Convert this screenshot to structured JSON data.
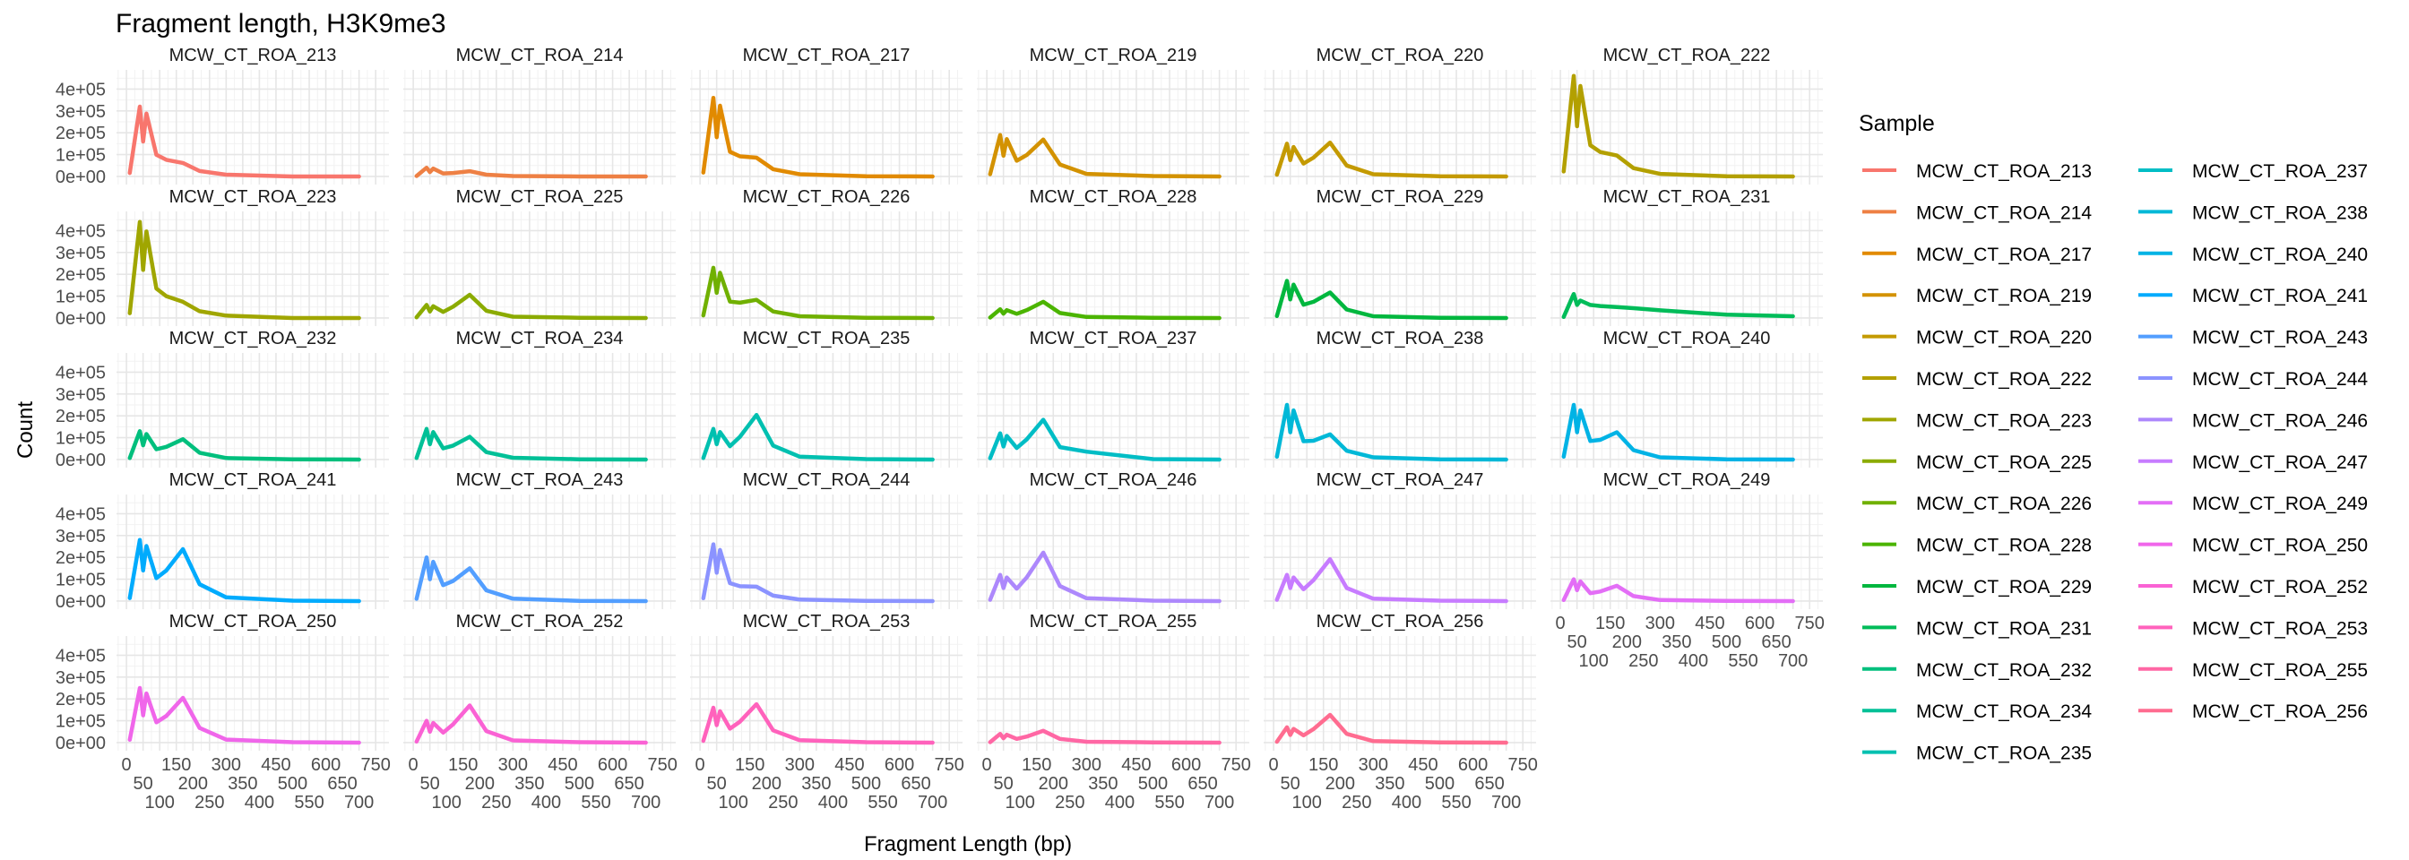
{
  "chart_data": {
    "type": "line",
    "title": "Fragment length, H3K9me3",
    "xlabel": "Fragment Length (bp)",
    "ylabel": "Count",
    "facet": "Sample",
    "xticks": [
      0,
      50,
      100,
      150,
      200,
      250,
      300,
      350,
      400,
      450,
      500,
      550,
      600,
      650,
      700,
      750
    ],
    "yticks": [
      0,
      100000,
      200000,
      300000,
      400000
    ],
    "ytick_labels": [
      "0e+00",
      "1e+05",
      "2e+05",
      "3e+05",
      "4e+05"
    ],
    "xlim": [
      -30,
      790
    ],
    "ylim": [
      -37000,
      488000
    ],
    "grid": true,
    "legend": {
      "title": "Sample",
      "position": "right"
    },
    "x": [
      10,
      40,
      50,
      60,
      90,
      120,
      170,
      220,
      300,
      500,
      700
    ],
    "y_unit": "thousands",
    "series": [
      {
        "name": "MCW_CT_ROA_213",
        "color": "#F8766D",
        "y": [
          16,
          320,
          160,
          288,
          99,
          76,
          62,
          25,
          8,
          0,
          0
        ]
      },
      {
        "name": "MCW_CT_ROA_214",
        "color": "#EE8044",
        "y": [
          2,
          40,
          20,
          36,
          14,
          16,
          24,
          8,
          2,
          0,
          0
        ]
      },
      {
        "name": "MCW_CT_ROA_217",
        "color": "#E18A00",
        "y": [
          18,
          360,
          180,
          324,
          113,
          92,
          86,
          33,
          10,
          1,
          0
        ]
      },
      {
        "name": "MCW_CT_ROA_219",
        "color": "#D39200",
        "y": [
          10,
          190,
          95,
          171,
          72,
          98,
          169,
          55,
          12,
          2,
          0
        ]
      },
      {
        "name": "MCW_CT_ROA_220",
        "color": "#C49A00",
        "y": [
          8,
          150,
          75,
          135,
          59,
          86,
          155,
          50,
          10,
          1,
          0
        ]
      },
      {
        "name": "MCW_CT_ROA_222",
        "color": "#B3A000",
        "y": [
          23,
          460,
          230,
          414,
          143,
          112,
          96,
          38,
          12,
          1,
          0
        ]
      },
      {
        "name": "MCW_CT_ROA_223",
        "color": "#A0A600",
        "y": [
          22,
          440,
          220,
          396,
          135,
          100,
          74,
          31,
          11,
          0,
          0
        ]
      },
      {
        "name": "MCW_CT_ROA_225",
        "color": "#8BAB00",
        "y": [
          3,
          60,
          30,
          54,
          28,
          52,
          106,
          33,
          6,
          1,
          0
        ]
      },
      {
        "name": "MCW_CT_ROA_226",
        "color": "#70B000",
        "y": [
          12,
          230,
          115,
          207,
          75,
          70,
          83,
          30,
          8,
          1,
          0
        ]
      },
      {
        "name": "MCW_CT_ROA_228",
        "color": "#4BB400",
        "y": [
          2,
          40,
          20,
          36,
          19,
          36,
          74,
          23,
          5,
          1,
          0
        ]
      },
      {
        "name": "MCW_CT_ROA_229",
        "color": "#00B73E",
        "y": [
          9,
          170,
          85,
          153,
          61,
          74,
          117,
          39,
          8,
          1,
          0
        ]
      },
      {
        "name": "MCW_CT_ROA_231",
        "color": "#00BC59",
        "y": [
          5,
          110,
          60,
          80,
          60,
          55,
          50,
          45,
          35,
          15,
          8
        ]
      },
      {
        "name": "MCW_CT_ROA_232",
        "color": "#00BF7D",
        "y": [
          7,
          130,
          65,
          117,
          47,
          58,
          93,
          31,
          7,
          1,
          0
        ]
      },
      {
        "name": "MCW_CT_ROA_234",
        "color": "#00C097",
        "y": [
          7,
          140,
          70,
          126,
          51,
          64,
          104,
          34,
          8,
          1,
          0
        ]
      },
      {
        "name": "MCW_CT_ROA_235",
        "color": "#00C0B0",
        "y": [
          7,
          140,
          70,
          126,
          61,
          104,
          204,
          64,
          13,
          2,
          0
        ]
      },
      {
        "name": "MCW_CT_ROA_237",
        "color": "#00BDC5",
        "y": [
          6,
          120,
          60,
          108,
          53,
          92,
          182,
          57,
          36,
          2,
          0
        ]
      },
      {
        "name": "MCW_CT_ROA_238",
        "color": "#00B8D7",
        "y": [
          13,
          250,
          125,
          225,
          84,
          86,
          115,
          40,
          10,
          1,
          0
        ]
      },
      {
        "name": "MCW_CT_ROA_240",
        "color": "#00B3E5",
        "y": [
          13,
          250,
          125,
          225,
          85,
          90,
          125,
          43,
          10,
          1,
          0
        ]
      },
      {
        "name": "MCW_CT_ROA_241",
        "color": "#00ABFD",
        "y": [
          14,
          280,
          140,
          252,
          105,
          140,
          238,
          77,
          17,
          2,
          0
        ]
      },
      {
        "name": "MCW_CT_ROA_243",
        "color": "#529EFF",
        "y": [
          10,
          200,
          100,
          180,
          73,
          92,
          150,
          49,
          11,
          1,
          0
        ]
      },
      {
        "name": "MCW_CT_ROA_244",
        "color": "#8B93FF",
        "y": [
          13,
          260,
          130,
          234,
          82,
          68,
          66,
          25,
          7,
          1,
          0
        ]
      },
      {
        "name": "MCW_CT_ROA_246",
        "color": "#AD88FC",
        "y": [
          6,
          120,
          60,
          108,
          57,
          108,
          222,
          69,
          13,
          2,
          0
        ]
      },
      {
        "name": "MCW_CT_ROA_247",
        "color": "#C77CFF",
        "y": [
          6,
          120,
          60,
          108,
          54,
          96,
          192,
          60,
          11,
          2,
          0
        ]
      },
      {
        "name": "MCW_CT_ROA_249",
        "color": "#E36EF6",
        "y": [
          5,
          100,
          50,
          90,
          36,
          44,
          70,
          23,
          5,
          1,
          0
        ]
      },
      {
        "name": "MCW_CT_ROA_250",
        "color": "#F066EA",
        "y": [
          13,
          250,
          125,
          225,
          93,
          122,
          205,
          67,
          14,
          2,
          0
        ]
      },
      {
        "name": "MCW_CT_ROA_252",
        "color": "#FA62D4",
        "y": [
          5,
          100,
          50,
          90,
          46,
          84,
          170,
          53,
          10,
          2,
          0
        ]
      },
      {
        "name": "MCW_CT_ROA_253",
        "color": "#FF62BC",
        "y": [
          8,
          160,
          80,
          144,
          64,
          96,
          176,
          56,
          11,
          2,
          0
        ]
      },
      {
        "name": "MCW_CT_ROA_255",
        "color": "#FF67A4",
        "y": [
          2,
          40,
          20,
          36,
          17,
          28,
          54,
          17,
          4,
          1,
          0
        ]
      },
      {
        "name": "MCW_CT_ROA_256",
        "color": "#FF6C90",
        "y": [
          4,
          70,
          35,
          63,
          33,
          62,
          127,
          40,
          7,
          1,
          0
        ]
      }
    ]
  }
}
